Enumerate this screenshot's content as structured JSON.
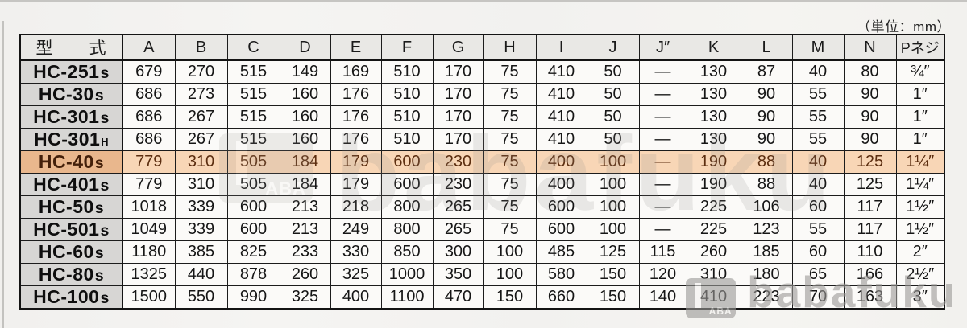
{
  "page": {
    "unit_note": "（単位：mm）"
  },
  "watermark": {
    "text": "babafuku",
    "logo_text": "ABA"
  },
  "colors": {
    "highlight_row_bg": "#f8d6b6",
    "highlight_model_bg": "#e9b78d",
    "highlight_text": "#5c2e10",
    "model_cell_bg": "#d7d6d4",
    "header_cell_bg": "#e9e8e5",
    "grid_line": "#1c1c1c"
  },
  "table": {
    "header": {
      "model": "型　　式",
      "cols": [
        "A",
        "B",
        "C",
        "D",
        "E",
        "F",
        "G",
        "H",
        "I",
        "J",
        "J″",
        "K",
        "L",
        "M",
        "N",
        "Pネジ"
      ]
    },
    "rows": [
      {
        "model_base": "HC-251",
        "model_suffix": "s",
        "highlight": false,
        "values": [
          "679",
          "270",
          "515",
          "149",
          "169",
          "510",
          "170",
          "75",
          "410",
          "50",
          "—",
          "130",
          "87",
          "40",
          "80",
          "¾″"
        ]
      },
      {
        "model_base": "HC-30",
        "model_suffix": "s",
        "highlight": false,
        "values": [
          "686",
          "273",
          "515",
          "160",
          "176",
          "510",
          "170",
          "75",
          "410",
          "50",
          "—",
          "130",
          "90",
          "55",
          "90",
          "1″"
        ]
      },
      {
        "model_base": "HC-301",
        "model_suffix": "s",
        "highlight": false,
        "values": [
          "686",
          "267",
          "515",
          "160",
          "176",
          "510",
          "170",
          "75",
          "410",
          "50",
          "—",
          "130",
          "90",
          "55",
          "90",
          "1″"
        ]
      },
      {
        "model_base": "HC-301",
        "model_suffix": "H",
        "highlight": false,
        "values": [
          "686",
          "267",
          "515",
          "160",
          "176",
          "510",
          "170",
          "75",
          "410",
          "50",
          "—",
          "130",
          "90",
          "55",
          "90",
          "1″"
        ]
      },
      {
        "model_base": "HC-40",
        "model_suffix": "s",
        "highlight": true,
        "values": [
          "779",
          "310",
          "505",
          "184",
          "179",
          "600",
          "230",
          "75",
          "400",
          "100",
          "—",
          "190",
          "88",
          "40",
          "125",
          "1¼″"
        ]
      },
      {
        "model_base": "HC-401",
        "model_suffix": "s",
        "highlight": false,
        "values": [
          "779",
          "310",
          "505",
          "184",
          "179",
          "600",
          "230",
          "75",
          "400",
          "100",
          "—",
          "190",
          "88",
          "40",
          "125",
          "1¼″"
        ]
      },
      {
        "model_base": "HC-50",
        "model_suffix": "s",
        "highlight": false,
        "values": [
          "1018",
          "339",
          "600",
          "213",
          "218",
          "800",
          "265",
          "75",
          "600",
          "100",
          "—",
          "225",
          "106",
          "60",
          "117",
          "1½″"
        ]
      },
      {
        "model_base": "HC-501",
        "model_suffix": "s",
        "highlight": false,
        "values": [
          "1049",
          "339",
          "600",
          "213",
          "249",
          "800",
          "265",
          "75",
          "600",
          "100",
          "—",
          "225",
          "123",
          "55",
          "117",
          "1½″"
        ]
      },
      {
        "model_base": "HC-60",
        "model_suffix": "s",
        "highlight": false,
        "values": [
          "1180",
          "385",
          "825",
          "233",
          "330",
          "850",
          "300",
          "100",
          "485",
          "125",
          "115",
          "260",
          "185",
          "60",
          "110",
          "2″"
        ]
      },
      {
        "model_base": "HC-80",
        "model_suffix": "s",
        "highlight": false,
        "values": [
          "1325",
          "440",
          "878",
          "260",
          "325",
          "1000",
          "350",
          "100",
          "580",
          "150",
          "120",
          "310",
          "180",
          "65",
          "166",
          "2½″"
        ]
      },
      {
        "model_base": "HC-100",
        "model_suffix": "s",
        "highlight": false,
        "values": [
          "1500",
          "550",
          "990",
          "325",
          "400",
          "1100",
          "470",
          "150",
          "660",
          "150",
          "140",
          "410",
          "223",
          "70",
          "163",
          "3″"
        ]
      }
    ]
  }
}
